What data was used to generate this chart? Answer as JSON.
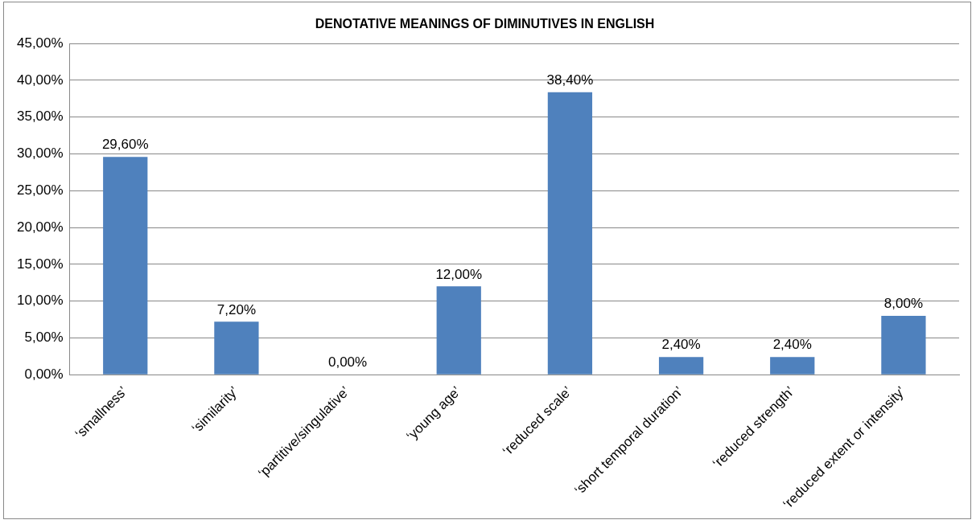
{
  "chart_data": {
    "type": "bar",
    "title": "DENOTATIVE MEANINGS OF DIMINUTIVES IN ENGLISH",
    "categories": [
      "‘smallness’",
      "‘similarity’",
      "‘partitive/singulative’",
      "‘young age’",
      "‘reduced scale’",
      "‘short temporal duration’",
      "‘reduced strength’",
      "‘reduced extent or intensity’"
    ],
    "values": [
      29.6,
      7.2,
      0,
      12,
      38.4,
      2.4,
      2.4,
      8
    ],
    "value_labels": [
      "29,60%",
      "7,20%",
      "0,00%",
      "12,00%",
      "38,40%",
      "2,40%",
      "2,40%",
      "8,00%"
    ],
    "color": "#4f81bd",
    "ylim": [
      0,
      45
    ],
    "yticks": [
      {
        "value": 0,
        "label": "0,00%"
      },
      {
        "value": 5,
        "label": "5,00%"
      },
      {
        "value": 10,
        "label": "10,00%"
      },
      {
        "value": 15,
        "label": "15,00%"
      },
      {
        "value": 20,
        "label": "20,00%"
      },
      {
        "value": 25,
        "label": "25,00%"
      },
      {
        "value": 30,
        "label": "30,00%"
      },
      {
        "value": 35,
        "label": "35,00%"
      },
      {
        "value": 40,
        "label": "40,00%"
      },
      {
        "value": 45,
        "label": "45,00%"
      }
    ],
    "grid": "y",
    "legend": false
  }
}
